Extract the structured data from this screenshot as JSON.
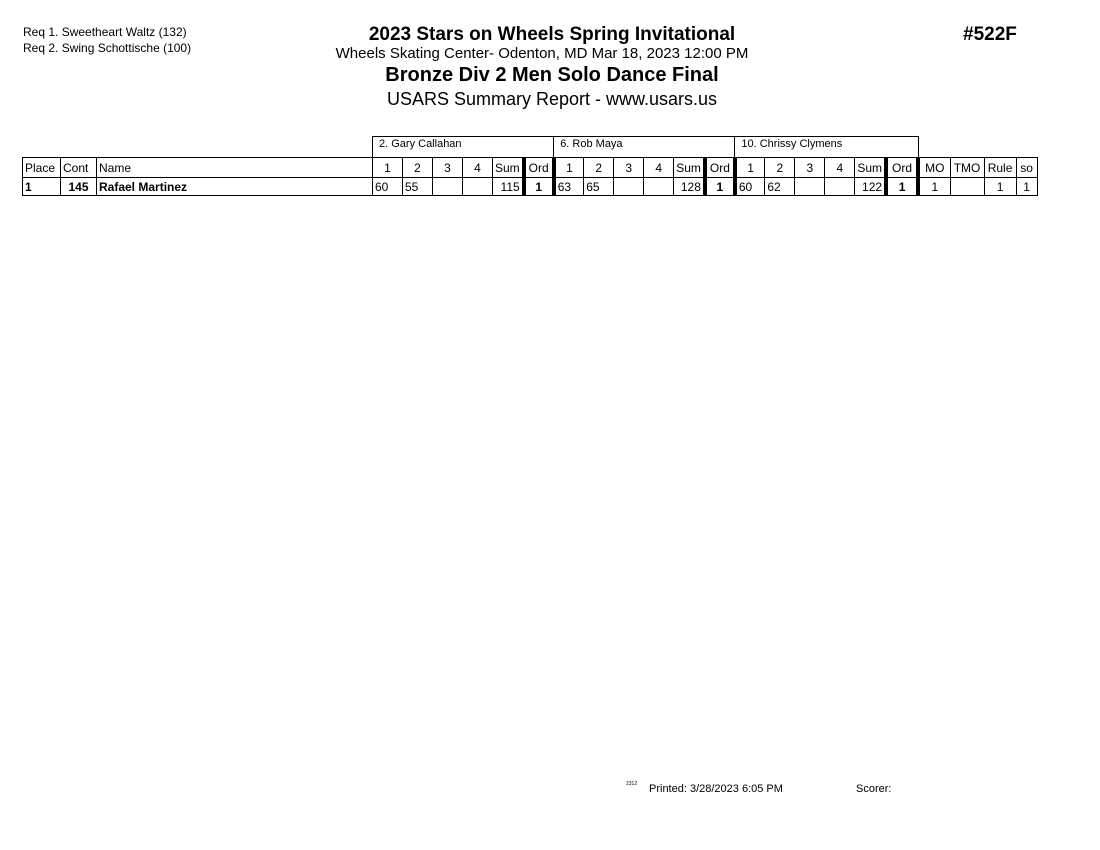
{
  "requirements": [
    "Req  1.  Sweetheart Waltz (132)",
    "Req  2.  Swing Schottische (100)"
  ],
  "header": {
    "title": "2023 Stars on Wheels Spring Invitational",
    "location": "Wheels Skating Center- Odenton, MD  Mar 18, 2023  12:00 PM",
    "event": "Bronze Div 2 Men Solo Dance Final",
    "report": "USARS Summary Report - www.usars.us",
    "event_number": "#522F"
  },
  "judges": [
    "2.  Gary Callahan",
    "6.  Rob Maya",
    "10.  Chrissy Clymens"
  ],
  "columns": {
    "place": "Place",
    "cont": "Cont",
    "name": "Name",
    "marks": [
      "1",
      "2",
      "3",
      "4"
    ],
    "sum": "Sum",
    "ord": "Ord",
    "mo": "MO",
    "tmo": "TMO",
    "rule": "Rule",
    "so": "so"
  },
  "rows": [
    {
      "place": "1",
      "cont": "145",
      "name": "Rafael Martinez",
      "scores": [
        {
          "m": [
            "60",
            "55",
            "",
            ""
          ],
          "sum": "115",
          "ord": "1"
        },
        {
          "m": [
            "63",
            "65",
            "",
            ""
          ],
          "sum": "128",
          "ord": "1"
        },
        {
          "m": [
            "60",
            "62",
            "",
            ""
          ],
          "sum": "122",
          "ord": "1"
        }
      ],
      "mo": "1",
      "tmo": "",
      "rule": "1",
      "so": "1"
    }
  ],
  "footer": {
    "code": "2312",
    "printed": "Printed:  3/28/2023  6:05 PM",
    "scorer": "Scorer:"
  }
}
